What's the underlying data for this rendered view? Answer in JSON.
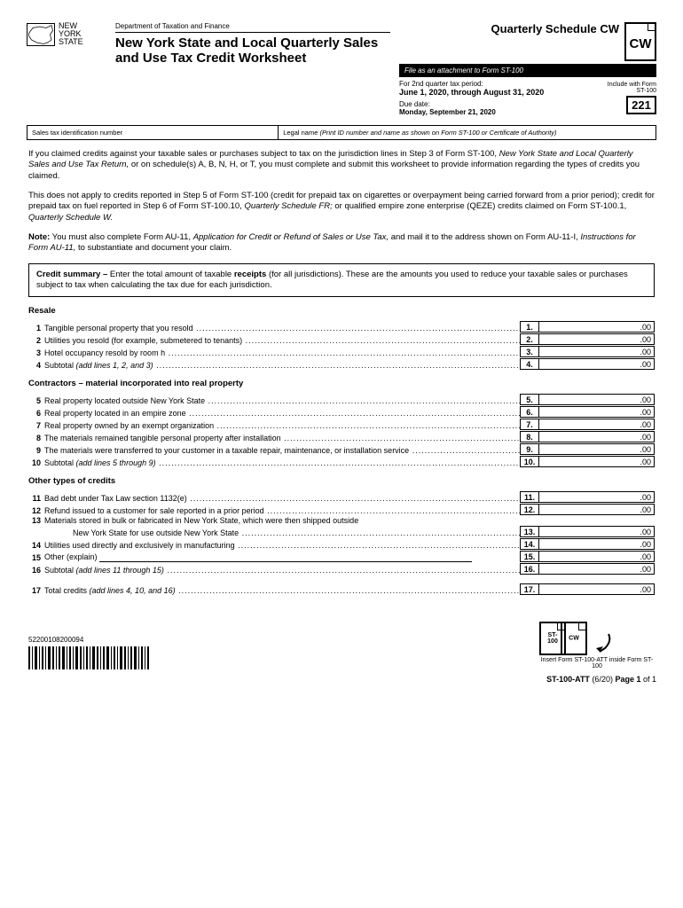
{
  "header": {
    "dept": "Department of Taxation and Finance",
    "title": "New York State and Local Quarterly Sales and Use Tax Credit Worksheet",
    "logo_text": "NEW YORK STATE",
    "schedule_title": "Quarterly Schedule CW",
    "cw": "CW",
    "attach_note": "File as an attachment to Form ST-100",
    "period_label": "For 2nd quarter tax period:",
    "period_range": "June 1, 2020, through August 31, 2020",
    "due_label": "Due date:",
    "due_date": "Monday, September 21, 2020",
    "include_note": "Include with Form ST-100",
    "form_code": "221"
  },
  "id_row": {
    "left_label": "Sales tax identification number",
    "right_label": "Legal name (Print ID number and name as shown on Form ST-100 or Certificate of Authority)"
  },
  "body": {
    "p1a": "If you claimed credits against your taxable sales or purchases subject to tax on the jurisdiction lines in Step 3 of Form ST-100,",
    "p1b": "New York State and Local Quarterly Sales and Use Tax Return,",
    "p1c": " or on schedule(s) A, B, N, H, or T, you must complete and submit this worksheet to provide information regarding the types of credits you claimed.",
    "p2a": "This does not apply to credits reported in Step 5 of Form ST-100 (credit for prepaid tax on cigarettes or overpayment being carried forward from a prior period); credit for prepaid tax on fuel reported in Step 6 of Form ST-100.10, ",
    "p2b": "Quarterly Schedule FR;",
    "p2c": " or qualified empire zone enterprise (QEZE) credits claimed on Form ST-100.1, ",
    "p2d": "Quarterly Schedule W.",
    "note_label": "Note:",
    "note_a": " You must also complete Form AU-11, ",
    "note_b": "Application for Credit or Refund of Sales or Use Tax,",
    "note_c": " and mail it to the address shown on Form AU-11-I, ",
    "note_d": "Instructions for Form AU-11,",
    "note_e": " to substantiate and document your claim.",
    "summary_label": "Credit summary –",
    "summary_text": " Enter the total amount of taxable ",
    "summary_bold": "receipts",
    "summary_rest": " (for all jurisdictions). These are the amounts you used to reduce your taxable sales or purchases subject to tax when calculating the tax due for each jurisdiction."
  },
  "sections": {
    "resale": "Resale",
    "contractors": "Contractors – material incorporated into real property",
    "other": "Other types of credits"
  },
  "lines": {
    "l1": {
      "n": "1",
      "d": "Tangible personal property that you resold",
      "amt": ".00"
    },
    "l2": {
      "n": "2",
      "d": "Utilities you resold (for example, submetered to tenants)",
      "amt": ".00"
    },
    "l3": {
      "n": "3",
      "d": "Hotel occupancy resold by room h",
      "amt": ".00"
    },
    "l4": {
      "n": "4",
      "d": "Subtotal ",
      "di": "(add lines 1, 2, and 3)",
      "amt": ".00"
    },
    "l5": {
      "n": "5",
      "d": "Real property located outside New York State",
      "amt": ".00"
    },
    "l6": {
      "n": "6",
      "d": "Real property located in an empire zone",
      "amt": ".00"
    },
    "l7": {
      "n": "7",
      "d": "Real property owned by an exempt organization",
      "amt": ".00"
    },
    "l8": {
      "n": "8",
      "d": "The materials remained tangible personal property after installation",
      "amt": ".00"
    },
    "l9": {
      "n": "9",
      "d": "The materials were transferred to your customer in a taxable repair, maintenance, or installation service",
      "amt": ".00"
    },
    "l10": {
      "n": "10",
      "d": "Subtotal ",
      "di": "(add lines 5 through 9)",
      "amt": ".00"
    },
    "l11": {
      "n": "11",
      "d": "Bad debt under Tax Law section 1132(e)",
      "amt": ".00"
    },
    "l12": {
      "n": "12",
      "d": "Refund issued to a customer for sale reported in a prior period",
      "amt": ".00"
    },
    "l13": {
      "n": "13",
      "d": "Materials stored in bulk or fabricated in New York State, which were then shipped outside",
      "d2": "New York State for use outside New York State",
      "amt": ".00"
    },
    "l14": {
      "n": "14",
      "d": "Utilities used directly and exclusively in manufacturing",
      "amt": ".00"
    },
    "l15": {
      "n": "15",
      "d": "Other (explain) ",
      "amt": ".00"
    },
    "l16": {
      "n": "16",
      "d": "Subtotal ",
      "di": "(add lines 11 through 15)",
      "amt": ".00"
    },
    "l17": {
      "n": "17",
      "d": "Total credits ",
      "di": "(add lines 4, 10, and 16)",
      "amt": ".00"
    }
  },
  "footer": {
    "barcode_num": "52200108200094",
    "st100": "ST-100",
    "cw": "CW",
    "insert_caption": "Insert Form ST-100-ATT inside Form ST-100",
    "form_id": "ST-100-ATT",
    "form_rev": " (6/20)    ",
    "page": "Page ",
    "page_n": "1",
    "page_of": " of 1"
  }
}
